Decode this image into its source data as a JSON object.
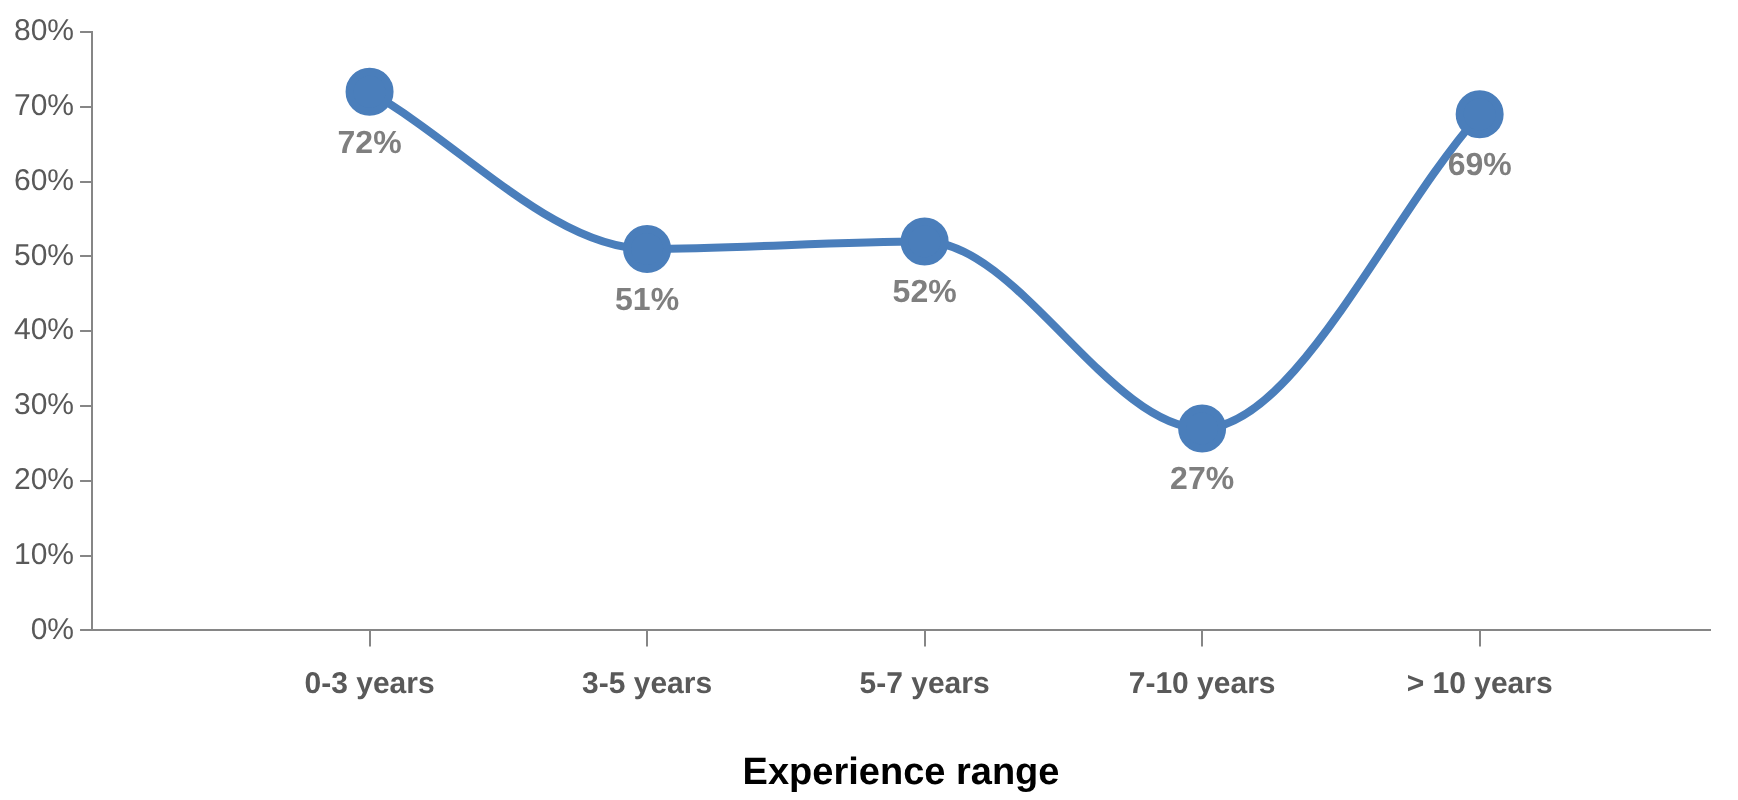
{
  "chart_data": {
    "type": "line",
    "xlabel": "Experience range",
    "categories": [
      "0-3 years",
      "3-5 years",
      "5-7 years",
      "7-10 years",
      "> 10 years"
    ],
    "series": [
      {
        "color": "#4a7ebb",
        "values": [
          72,
          51,
          52,
          27,
          69
        ]
      }
    ],
    "ylim": [
      0,
      80
    ],
    "yticks": [
      {
        "value": 0,
        "label": "0%"
      },
      {
        "value": 10,
        "label": "10%"
      },
      {
        "value": 20,
        "label": "20%"
      },
      {
        "value": 30,
        "label": "30%"
      },
      {
        "value": 40,
        "label": "40%"
      },
      {
        "value": 50,
        "label": "50%"
      },
      {
        "value": 60,
        "label": "60%"
      },
      {
        "value": 70,
        "label": "70%"
      },
      {
        "value": 80,
        "label": "80%"
      }
    ],
    "value_labels": [
      "72%",
      "51%",
      "52%",
      "27%",
      "69%"
    ],
    "grid": false,
    "legend": false,
    "marker": "circle",
    "line_style": "solid"
  }
}
